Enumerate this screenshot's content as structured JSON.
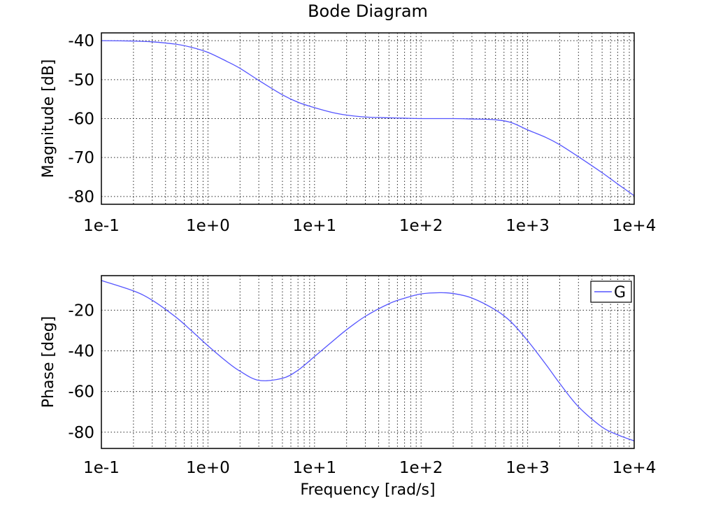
{
  "figure": {
    "title": "Bode Diagram"
  },
  "chart_data": [
    {
      "type": "line",
      "xscale": "log",
      "xlim": [
        0.1,
        10000
      ],
      "ylim": [
        -82,
        -38
      ],
      "yticks": [
        -40,
        -50,
        -60,
        -70,
        -80
      ],
      "xticks": [
        0.1,
        1,
        10,
        100,
        1000,
        10000
      ],
      "xtick_labels": [
        "1e-1",
        "1e+0",
        "1e+1",
        "1e+2",
        "1e+3",
        "1e+4"
      ],
      "xlabel": "",
      "ylabel": "Magnitude [dB]",
      "grid": true,
      "series": [
        {
          "color": "#5555ff",
          "x": [
            0.1,
            0.2,
            0.3,
            0.5,
            0.7,
            1,
            1.5,
            2,
            3,
            5,
            7,
            10,
            15,
            20,
            30,
            50,
            70,
            100,
            200,
            300,
            500,
            700,
            1000,
            1500,
            2000,
            3000,
            5000,
            7000,
            10000
          ],
          "y": [
            -40.0,
            -40.1,
            -40.3,
            -40.9,
            -41.7,
            -43.0,
            -45.3,
            -47.1,
            -50.2,
            -53.9,
            -55.8,
            -57.2,
            -58.5,
            -59.1,
            -59.6,
            -59.8,
            -59.9,
            -60.0,
            -60.0,
            -60.1,
            -60.3,
            -61.0,
            -62.9,
            -64.9,
            -66.7,
            -69.8,
            -73.9,
            -76.8,
            -79.8
          ]
        }
      ]
    },
    {
      "type": "line",
      "xscale": "log",
      "xlim": [
        0.1,
        10000
      ],
      "ylim": [
        -88,
        -3
      ],
      "yticks": [
        -20,
        -40,
        -60,
        -80
      ],
      "xticks": [
        0.1,
        1,
        10,
        100,
        1000,
        10000
      ],
      "xtick_labels": [
        "1e-1",
        "1e+0",
        "1e+1",
        "1e+2",
        "1e+3",
        "1e+4"
      ],
      "xlabel": "Frequency [rad/s]",
      "ylabel": "Phase [deg]",
      "grid": true,
      "legend": {
        "position": "top-right",
        "entries": [
          "G"
        ]
      },
      "series": [
        {
          "name": "G",
          "color": "#5555ff",
          "x": [
            0.1,
            0.2,
            0.3,
            0.5,
            0.7,
            1,
            1.5,
            2,
            3,
            5,
            7,
            10,
            15,
            20,
            30,
            50,
            70,
            100,
            150,
            200,
            300,
            500,
            700,
            1000,
            1500,
            2000,
            3000,
            5000,
            7000,
            10000
          ],
          "y": [
            -5.4,
            -10.5,
            -15.1,
            -23.4,
            -30.1,
            -37.5,
            -45.3,
            -50.0,
            -54.5,
            -53.5,
            -49.5,
            -42.8,
            -35.0,
            -29.6,
            -23.0,
            -16.8,
            -14.1,
            -12.0,
            -11.4,
            -11.8,
            -14.0,
            -19.9,
            -25.8,
            -35.0,
            -47.0,
            -56.0,
            -67.5,
            -77.5,
            -81.3,
            -84.3
          ]
        }
      ]
    }
  ]
}
